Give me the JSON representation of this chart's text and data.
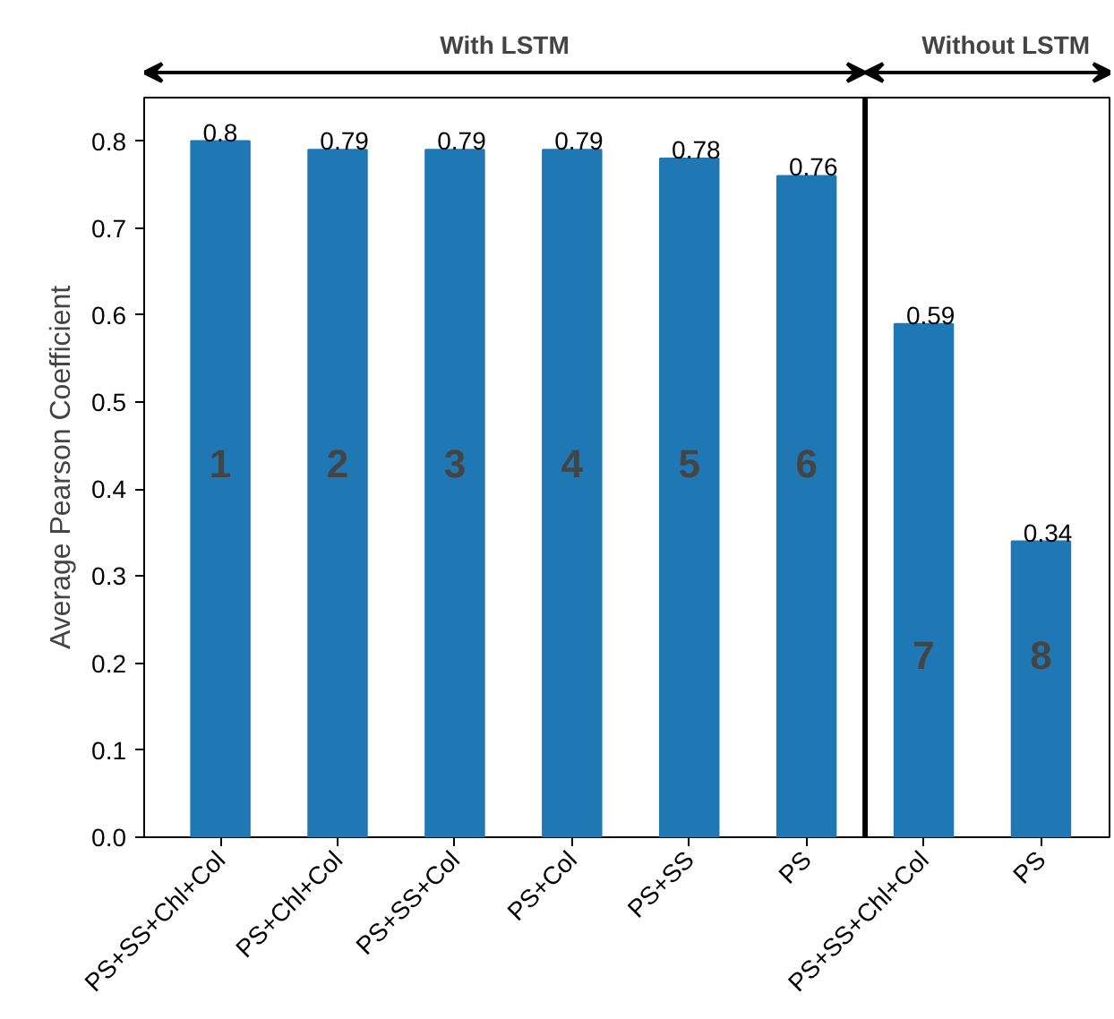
{
  "chart_data": {
    "type": "bar",
    "ylabel": "Average Pearson Coefficient",
    "categories": [
      "PS+SS+Chl+Col",
      "PS+Chl+Col",
      "PS+SS+Col",
      "PS+Col",
      "PS+SS",
      "PS",
      "PS+SS+Chl+Col",
      "PS"
    ],
    "values": [
      0.8,
      0.79,
      0.79,
      0.79,
      0.78,
      0.76,
      0.59,
      0.34
    ],
    "color": "#1f77b4",
    "data_labels": true,
    "ylim": [
      0,
      0.85
    ],
    "yticks": [
      {
        "value": 0,
        "label": "0.0"
      },
      0.1,
      0.2,
      0.3,
      0.4,
      0.5,
      0.6,
      0.7,
      0.8
    ],
    "grid": false,
    "annotations": [
      "With LSTM",
      "Without LSTM",
      "1",
      "2",
      "3",
      "4",
      "5",
      "6",
      "7",
      "8"
    ]
  }
}
